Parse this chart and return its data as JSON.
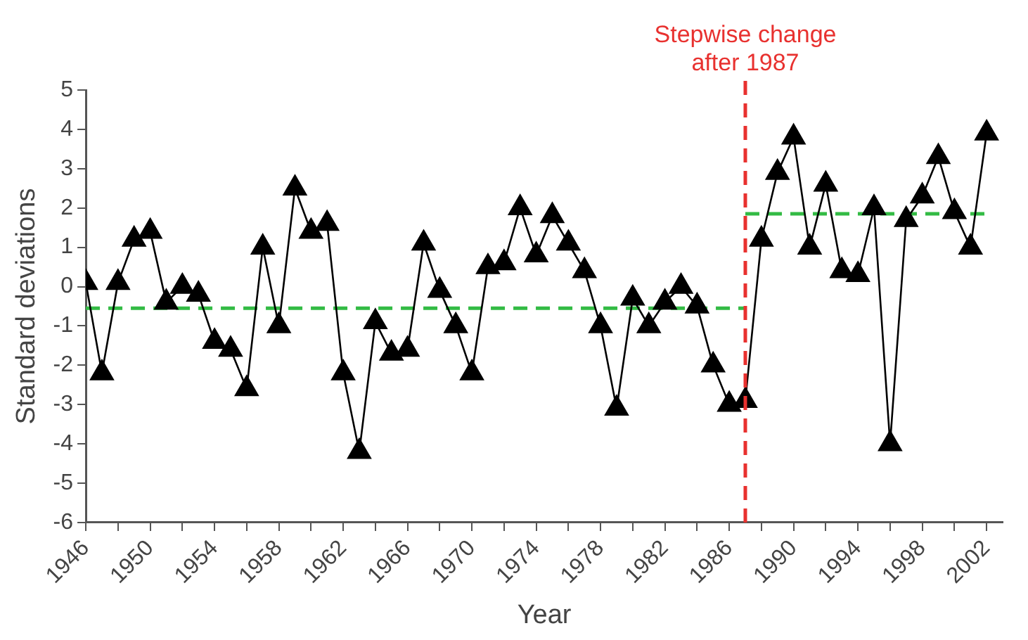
{
  "chart_data": {
    "type": "line",
    "xlabel": "Year",
    "ylabel": "Standard deviations",
    "xlim": [
      1946,
      2003
    ],
    "ylim": [
      -6,
      5
    ],
    "xticks": [
      1946,
      {
        "value": 1948,
        "label": null
      },
      1950,
      {
        "value": 1952,
        "label": null
      },
      1954,
      {
        "value": 1956,
        "label": null
      },
      1958,
      {
        "value": 1960,
        "label": null
      },
      1962,
      {
        "value": 1964,
        "label": null
      },
      1966,
      {
        "value": 1968,
        "label": null
      },
      1970,
      {
        "value": 1972,
        "label": null
      },
      1974,
      {
        "value": 1976,
        "label": null
      },
      1978,
      {
        "value": 1980,
        "label": null
      },
      1982,
      {
        "value": 1984,
        "label": null
      },
      1986,
      {
        "value": 1988,
        "label": null
      },
      1990,
      {
        "value": 1992,
        "label": null
      },
      1994,
      {
        "value": 1996,
        "label": null
      },
      1998,
      {
        "value": 2000,
        "label": null
      },
      2002
    ],
    "yticks": [
      -6,
      -5,
      -4,
      -3,
      -2,
      -1,
      0,
      1,
      2,
      3,
      4,
      5
    ],
    "grid": false,
    "legend": false,
    "series": [
      {
        "color": "#000000",
        "marker": "triangle",
        "line_style": "solid",
        "x": [
          1946,
          1947,
          1948,
          1949,
          1950,
          1951,
          1952,
          1953,
          1954,
          1955,
          1956,
          1957,
          1958,
          1959,
          1960,
          1961,
          1962,
          1963,
          1964,
          1965,
          1966,
          1967,
          1968,
          1969,
          1970,
          1971,
          1972,
          1973,
          1974,
          1975,
          1976,
          1977,
          1978,
          1979,
          1980,
          1981,
          1982,
          1983,
          1984,
          1985,
          1986,
          1987,
          1988,
          1989,
          1990,
          1991,
          1992,
          1993,
          1994,
          1995,
          1996,
          1997,
          1998,
          1999,
          2000,
          2001,
          2002
        ],
        "values": [
          0.1,
          -2.2,
          0.1,
          1.2,
          1.4,
          -0.4,
          0,
          -0.2,
          -1.4,
          -1.6,
          -2.6,
          1.0,
          -1.0,
          2.5,
          1.4,
          1.6,
          -2.2,
          -4.2,
          -0.9,
          -1.7,
          -1.6,
          1.1,
          -0.1,
          -1.0,
          -2.2,
          0.5,
          0.6,
          2.0,
          0.8,
          1.8,
          1.1,
          0.4,
          -1.0,
          -3.1,
          -0.3,
          -1.0,
          -0.4,
          0,
          -0.5,
          -2.0,
          -3.0,
          -2.9,
          1.2,
          2.9,
          3.8,
          1.0,
          2.6,
          0.4,
          0.3,
          2.0,
          -4.0,
          1.7,
          2.3,
          3.3,
          1.9,
          1.0,
          3.9
        ]
      },
      {
        "color": "#33bb44",
        "marker": "none",
        "line_style": "dashed",
        "x": [
          1946,
          1987
        ],
        "values": [
          -0.55,
          -0.55
        ]
      },
      {
        "color": "#33bb44",
        "marker": "none",
        "line_style": "dashed",
        "x": [
          1987,
          2002
        ],
        "values": [
          1.85,
          1.85
        ]
      }
    ],
    "ref_lines": [
      {
        "axis": "x",
        "value": 1987,
        "label": "Stepwise change\nafter 1987",
        "color": "#e8312f",
        "line_style": "dashed"
      }
    ]
  }
}
